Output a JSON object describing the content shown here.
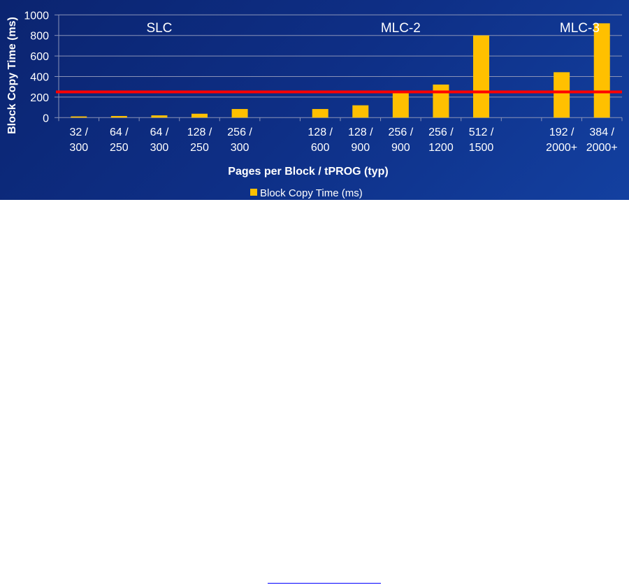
{
  "chart_data": {
    "type": "bar",
    "title": "",
    "xlabel": "Pages per Block / tPROG (typ)",
    "ylabel": "Block Copy Time (ms)",
    "ylim": [
      0,
      1000
    ],
    "yticks": [
      "0",
      "200",
      "400",
      "600",
      "800",
      "1000"
    ],
    "grid": true,
    "legend_position": "bottom",
    "groups": [
      {
        "label": "SLC",
        "categories": [
          [
            "32 /",
            "300"
          ],
          [
            "64 /",
            "250"
          ],
          [
            "64 /",
            "300"
          ],
          [
            "128 /",
            "250"
          ],
          [
            "256 /",
            "300"
          ]
        ],
        "values": [
          12,
          16,
          22,
          38,
          84
        ]
      },
      {
        "label": "MLC-2",
        "categories": [
          [
            "128 /",
            "600"
          ],
          [
            "128 /",
            "900"
          ],
          [
            "256 /",
            "900"
          ],
          [
            "256 /",
            "1200"
          ],
          [
            "512 /",
            "1500"
          ]
        ],
        "values": [
          84,
          120,
          242,
          322,
          800
        ]
      },
      {
        "label": "MLC-3",
        "categories": [
          [
            "192 /",
            "2000+"
          ],
          [
            "384 /",
            "2000+"
          ]
        ],
        "values": [
          442,
          918
        ]
      }
    ],
    "series": [
      {
        "name": "Block Copy Time (ms)",
        "color": "#ffc000"
      }
    ],
    "reference_line": {
      "value": 250,
      "color": "#ff0000"
    },
    "colors": {
      "background": "#0e2f86",
      "grid": "#8a93b8",
      "text": "#ffffff"
    }
  }
}
